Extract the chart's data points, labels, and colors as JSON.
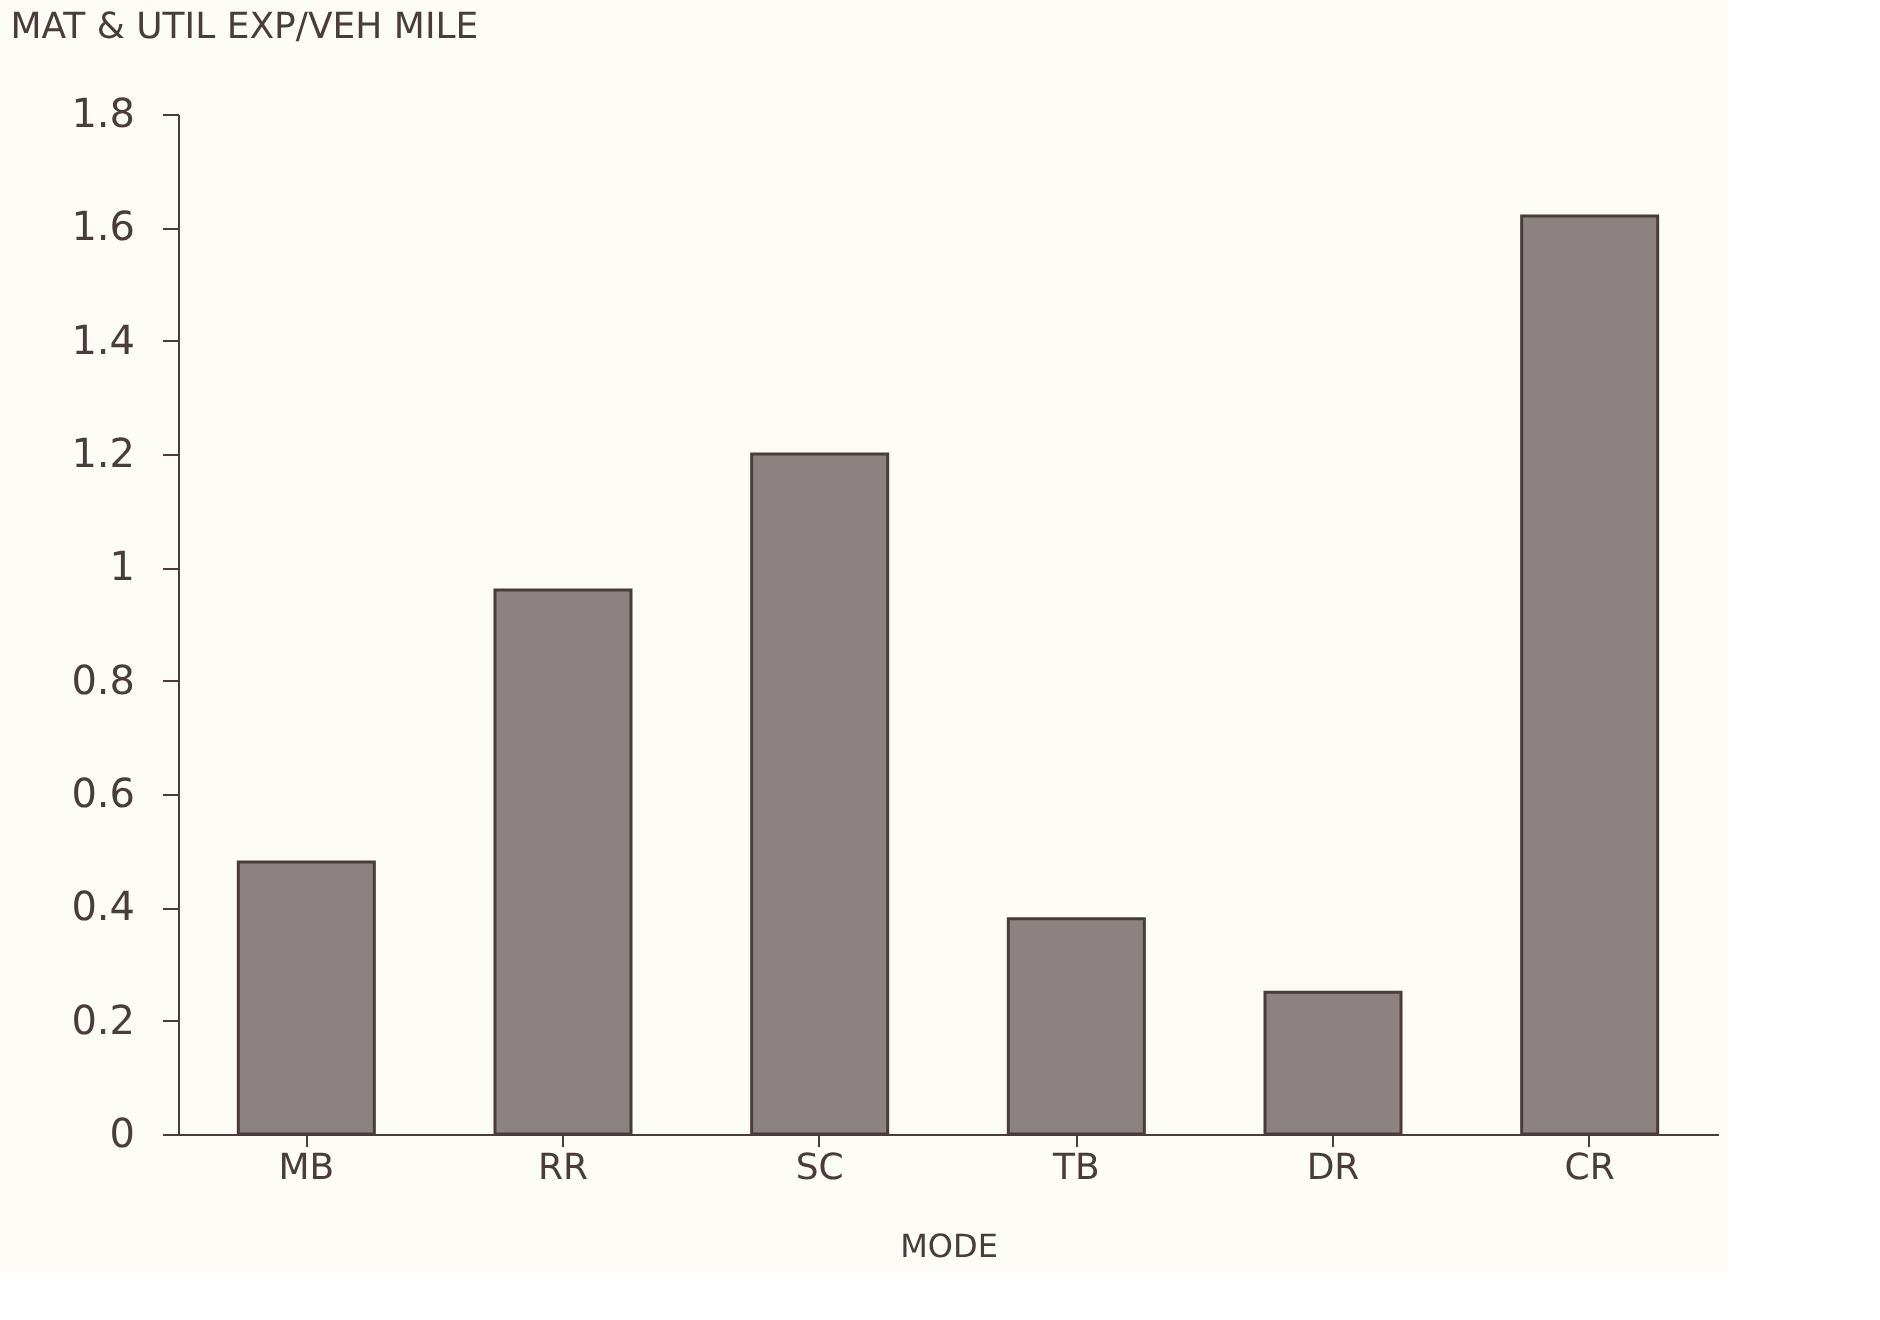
{
  "chart_data": {
    "type": "bar",
    "title": "MAT & UTIL EXP/VEH MILE",
    "xlabel": "MODE",
    "categories": [
      "MB",
      "RR",
      "SC",
      "TB",
      "DR",
      "CR"
    ],
    "values": [
      0.48,
      0.96,
      1.2,
      0.38,
      0.25,
      1.62
    ],
    "color": "#8c8282",
    "ylim": [
      0,
      1.8
    ],
    "yticks": [
      0,
      0.2,
      0.4,
      0.6,
      0.8,
      1,
      1.2,
      1.4,
      1.6,
      1.8
    ],
    "grid": false
  }
}
